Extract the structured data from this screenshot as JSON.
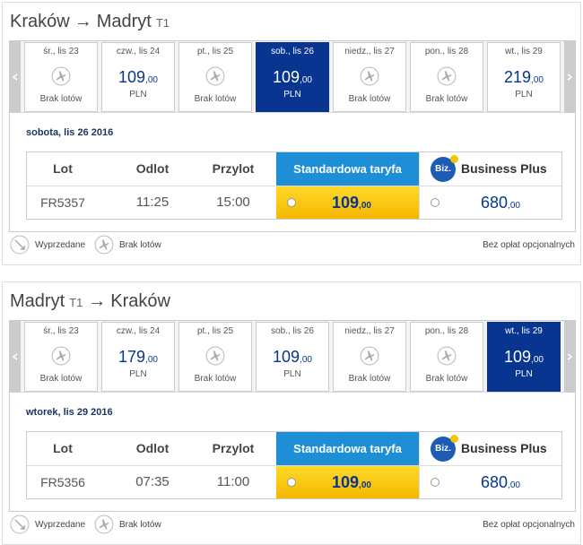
{
  "sections": [
    {
      "title": [
        {
          "text": "Kraków"
        },
        {
          "text": "→"
        },
        {
          "text": "Madryt"
        },
        {
          "text": "T1",
          "small": true
        }
      ],
      "days": [
        {
          "date": "śr., lis 23",
          "status": "Brak lotów"
        },
        {
          "date": "czw., lis 24",
          "price": "109",
          "cents": ",00",
          "currency": "PLN"
        },
        {
          "date": "pt., lis 25",
          "status": "Brak lotów"
        },
        {
          "date": "sob., lis 26",
          "price": "109",
          "cents": ",00",
          "currency": "PLN",
          "selected": true
        },
        {
          "date": "niedz., lis 27",
          "status": "Brak lotów"
        },
        {
          "date": "pon., lis 28",
          "status": "Brak lotów"
        },
        {
          "date": "wt., lis 29",
          "price": "219",
          "cents": ",00",
          "currency": "PLN"
        }
      ],
      "selected_date": "sobota, lis 26 2016",
      "table": {
        "headers": [
          "Lot",
          "Odlot",
          "Przylot",
          "Standardowa taryfa",
          "Business Plus"
        ],
        "logo": "Biz.",
        "row": {
          "flight": "FR5357",
          "departure": "11:25",
          "arrival": "15:00",
          "standard_price": "109",
          "standard_cents": ",00",
          "business_price": "680",
          "business_cents": ",00"
        }
      },
      "legend": [
        "Wyprzedane",
        "Brak lotów"
      ],
      "note": "Bez opłat opcjonalnych"
    },
    {
      "title": [
        {
          "text": "Madryt"
        },
        {
          "text": "T1",
          "small": true
        },
        {
          "text": "→"
        },
        {
          "text": "Kraków"
        }
      ],
      "days": [
        {
          "date": "śr., lis 23",
          "status": "Brak lotów"
        },
        {
          "date": "czw., lis 24",
          "price": "179",
          "cents": ",00",
          "currency": "PLN"
        },
        {
          "date": "pt., lis 25",
          "status": "Brak lotów"
        },
        {
          "date": "sob., lis 26",
          "price": "109",
          "cents": ",00",
          "currency": "PLN"
        },
        {
          "date": "niedz., lis 27",
          "status": "Brak lotów"
        },
        {
          "date": "pon., lis 28",
          "status": "Brak lotów"
        },
        {
          "date": "wt., lis 29",
          "price": "109",
          "cents": ",00",
          "currency": "PLN",
          "selected": true
        }
      ],
      "selected_date": "wtorek, lis 29 2016",
      "table": {
        "headers": [
          "Lot",
          "Odlot",
          "Przylot",
          "Standardowa taryfa",
          "Business Plus"
        ],
        "logo": "Biz.",
        "row": {
          "flight": "FR5356",
          "departure": "07:35",
          "arrival": "11:00",
          "standard_price": "109",
          "standard_cents": ",00",
          "business_price": "680",
          "business_cents": ",00"
        }
      },
      "legend": [
        "Wyprzedane",
        "Brak lotów"
      ],
      "note": "Bez opłat opcjonalnych"
    }
  ]
}
